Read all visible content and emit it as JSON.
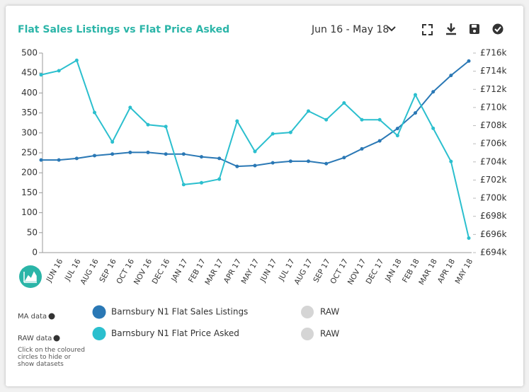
{
  "controls": {
    "date_range": "Jun 16 - May 18"
  },
  "legend": {
    "ma_label": "MA data",
    "raw_label": "RAW data",
    "hint": "Click on the coloured circles to hide or show datasets",
    "raw_entries": [
      "RAW",
      "RAW"
    ]
  },
  "chart_data": {
    "type": "line",
    "title": "Flat Sales Listings vs Flat Price Asked",
    "categories": [
      null,
      "JUN 16",
      "JUL 16",
      "AUG 16",
      "SEP 16",
      "OCT 16",
      "NOV 16",
      "DEC 16",
      "JAN 17",
      "FEB 17",
      "MAR 17",
      "APR 17",
      "MAY 17",
      "JUN 17",
      "JUL 17",
      "AUG 17",
      "SEP 17",
      "OCT 17",
      "NOV 17",
      "DEC 17",
      "JAN 18",
      "FEB 18",
      "MAR 18",
      "APR 18",
      "MAY 18"
    ],
    "series": [
      {
        "name": "Barnsbury N1 Flat Sales Listings",
        "color": "#2a78b5",
        "axis": "y",
        "values": [
          232,
          232,
          236,
          243,
          247,
          251,
          251,
          247,
          247,
          240,
          236,
          216,
          218,
          225,
          229,
          229,
          223,
          238,
          260,
          280,
          311,
          350,
          403,
          444,
          480
        ]
      },
      {
        "name": "Barnsbury N1 Flat Price Asked",
        "color": "#2bbfce",
        "axis": "y2",
        "values": [
          713600,
          714050,
          715200,
          709450,
          706200,
          710000,
          708100,
          707900,
          701500,
          701700,
          702100,
          708500,
          705150,
          707100,
          707250,
          709600,
          708650,
          710500,
          708650,
          708650,
          706900,
          711400,
          707700,
          704050,
          695600
        ]
      }
    ],
    "ylim": [
      0,
      500
    ],
    "yticks": [
      0,
      50,
      100,
      150,
      200,
      250,
      300,
      350,
      400,
      450,
      500
    ],
    "y2lim": [
      694000,
      716000
    ],
    "y2ticks": [
      {
        "value": 694000,
        "label": "£694k"
      },
      {
        "value": 696000,
        "label": "£696k"
      },
      {
        "value": 698000,
        "label": "£698k"
      },
      {
        "value": 700000,
        "label": "£700k"
      },
      {
        "value": 702000,
        "label": "£702k"
      },
      {
        "value": 704000,
        "label": "£704k"
      },
      {
        "value": 706000,
        "label": "£706k"
      },
      {
        "value": 708000,
        "label": "£708k"
      },
      {
        "value": 710000,
        "label": "£710k"
      },
      {
        "value": 712000,
        "label": "£712k"
      },
      {
        "value": 714000,
        "label": "£714k"
      },
      {
        "value": 716000,
        "label": "£716k"
      }
    ]
  }
}
